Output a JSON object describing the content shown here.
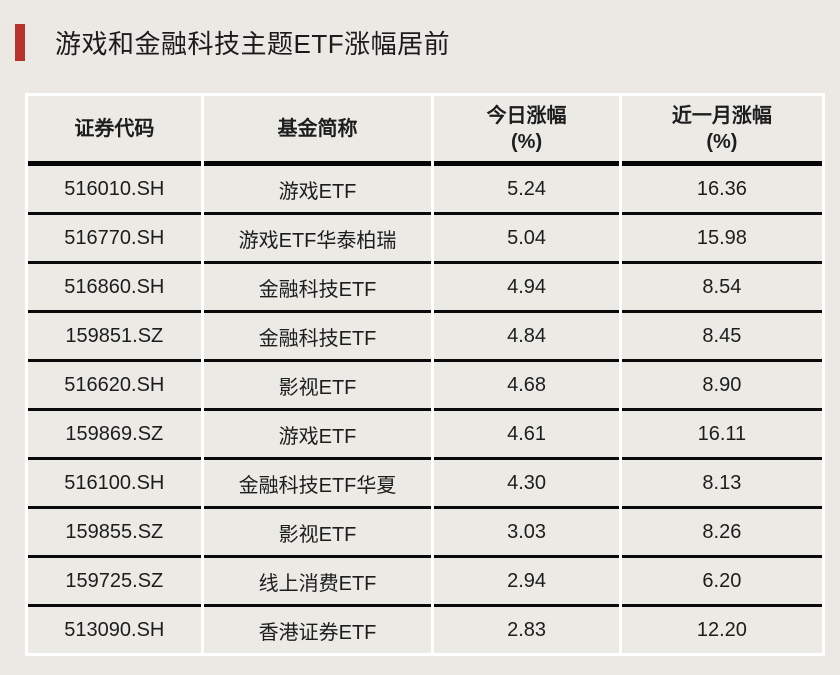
{
  "page": {
    "background_color": "#ece9e4",
    "cell_color": "#eceae5",
    "accent_red": "#b5332e",
    "line_color": "#0a0a0a"
  },
  "title": {
    "text": "游戏和金融科技主题ETF涨幅居前"
  },
  "table": {
    "columns": [
      {
        "id": "code",
        "label": "证券代码",
        "sub": ""
      },
      {
        "id": "name",
        "label": "基金简称",
        "sub": ""
      },
      {
        "id": "today",
        "label": "今日涨幅",
        "sub": "(%)"
      },
      {
        "id": "month",
        "label": "近一月涨幅",
        "sub": "(%)"
      }
    ],
    "rows": [
      {
        "code": "516010.SH",
        "name": "游戏ETF",
        "today": "5.24",
        "month": "16.36"
      },
      {
        "code": "516770.SH",
        "name": "游戏ETF华泰柏瑞",
        "today": "5.04",
        "month": "15.98"
      },
      {
        "code": "516860.SH",
        "name": "金融科技ETF",
        "today": "4.94",
        "month": "8.54"
      },
      {
        "code": "159851.SZ",
        "name": "金融科技ETF",
        "today": "4.84",
        "month": "8.45"
      },
      {
        "code": "516620.SH",
        "name": "影视ETF",
        "today": "4.68",
        "month": "8.90"
      },
      {
        "code": "159869.SZ",
        "name": "游戏ETF",
        "today": "4.61",
        "month": "16.11"
      },
      {
        "code": "516100.SH",
        "name": "金融科技ETF华夏",
        "today": "4.30",
        "month": "8.13"
      },
      {
        "code": "159855.SZ",
        "name": "影视ETF",
        "today": "3.03",
        "month": "8.26"
      },
      {
        "code": "159725.SZ",
        "name": "线上消费ETF",
        "today": "2.94",
        "month": "6.20"
      },
      {
        "code": "513090.SH",
        "name": "香港证券ETF",
        "today": "2.83",
        "month": "12.20"
      }
    ]
  },
  "chart_data": {
    "type": "table",
    "title": "游戏和金融科技主题ETF涨幅居前",
    "columns": [
      "证券代码",
      "基金简称",
      "今日涨幅(%)",
      "近一月涨幅(%)"
    ],
    "rows": [
      [
        "516010.SH",
        "游戏ETF",
        5.24,
        16.36
      ],
      [
        "516770.SH",
        "游戏ETF华泰柏瑞",
        5.04,
        15.98
      ],
      [
        "516860.SH",
        "金融科技ETF",
        4.94,
        8.54
      ],
      [
        "159851.SZ",
        "金融科技ETF",
        4.84,
        8.45
      ],
      [
        "516620.SH",
        "影视ETF",
        4.68,
        8.9
      ],
      [
        "159869.SZ",
        "游戏ETF",
        4.61,
        16.11
      ],
      [
        "516100.SH",
        "金融科技ETF华夏",
        4.3,
        8.13
      ],
      [
        "159855.SZ",
        "影视ETF",
        3.03,
        8.26
      ],
      [
        "159725.SZ",
        "线上消费ETF",
        2.94,
        6.2
      ],
      [
        "513090.SH",
        "香港证券ETF",
        2.83,
        12.2
      ]
    ]
  }
}
